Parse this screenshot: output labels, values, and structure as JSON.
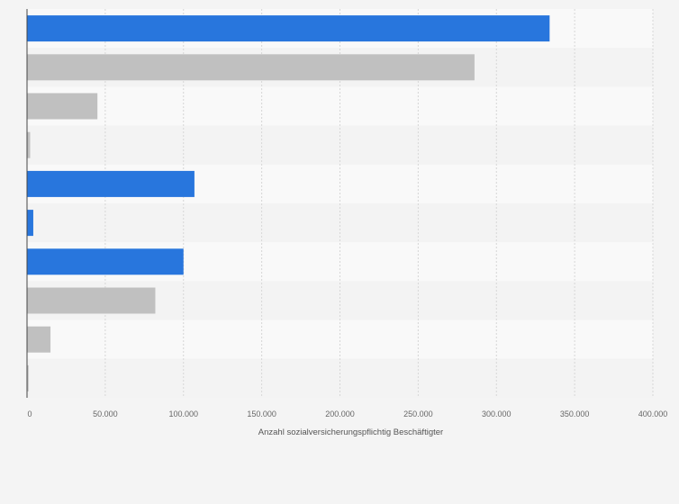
{
  "chart_data": {
    "type": "bar",
    "orientation": "horizontal",
    "title": "",
    "xlabel": "Anzahl sozialversicherungspflichtig Beschäftigter",
    "ylabel": "",
    "xlim": [
      0,
      400000
    ],
    "x_ticks": [
      0,
      50000,
      100000,
      150000,
      200000,
      250000,
      300000,
      350000,
      400000
    ],
    "x_tick_labels": [
      "0",
      "50.000",
      "100.000",
      "150.000",
      "200.000",
      "250.000",
      "300.000",
      "350.000",
      "400.000"
    ],
    "categories": [
      "",
      "",
      "",
      "",
      "",
      "",
      "",
      "",
      "",
      ""
    ],
    "values": [
      334000,
      286000,
      45000,
      2000,
      107000,
      4000,
      100000,
      82000,
      15000,
      1000
    ],
    "bar_colors": [
      "#2876dd",
      "#c0c0c0",
      "#c0c0c0",
      "#c0c0c0",
      "#2876dd",
      "#2876dd",
      "#2876dd",
      "#c0c0c0",
      "#c0c0c0",
      "#c0c0c0"
    ],
    "grid": true
  },
  "colors": {
    "background": "#f4f4f4",
    "band_light": "#f9f9f9",
    "band_dark": "#f3f3f3",
    "gridline": "#d6d6d6",
    "axis": "#444444"
  }
}
